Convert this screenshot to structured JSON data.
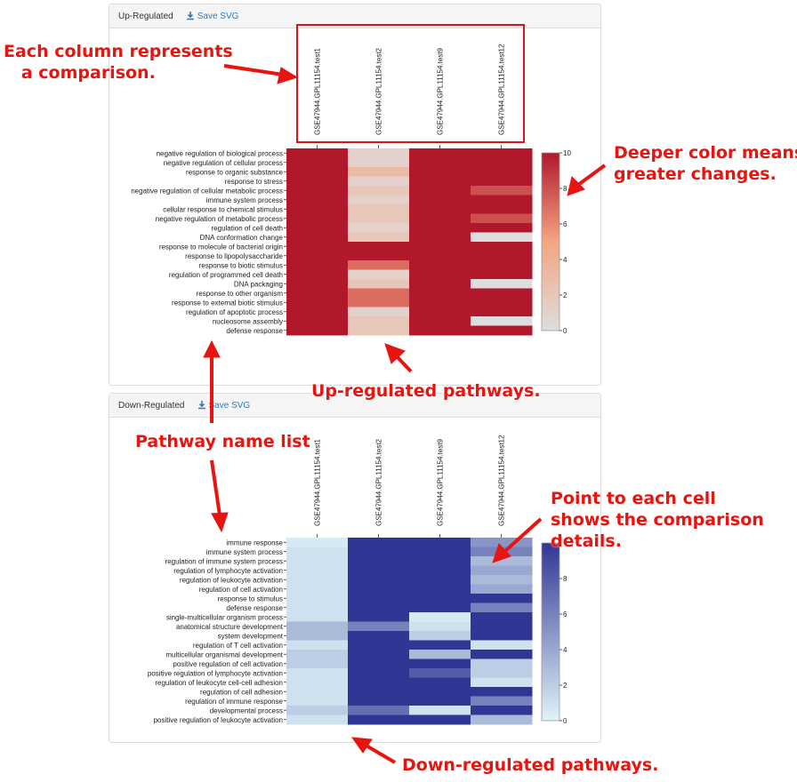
{
  "up_panel": {
    "title": "Up-Regulated",
    "save_label": "Save SVG"
  },
  "down_panel": {
    "title": "Down-Regulated",
    "save_label": "Save SVG"
  },
  "annotations": {
    "columns": "Each column represents\n   a comparison.",
    "color": "Deeper color means\ngreater changes.",
    "up": "Up-regulated pathways.",
    "names": "Pathway name list",
    "cell": "Point to each cell\nshows the comparison\ndetails.",
    "down": "Down-regulated pathways."
  },
  "colors": {
    "up_high": "#b2182b",
    "up_mid": "#f4a582",
    "up_low": "#dddddd",
    "down_high": "#313695",
    "down_low": "#e0f3f8",
    "annotation": "#e8140f",
    "link": "#337ab7"
  },
  "chart_data": [
    {
      "type": "heatmap",
      "name": "Up-Regulated",
      "columns": [
        "GSE47944.GPL11154.test1",
        "GSE47944.GPL11154.test2",
        "GSE47944.GPL11154.test9",
        "GSE47944.GPL11154.test12"
      ],
      "rows": [
        "negative regulation of biological process",
        "negative regulation of cellular process",
        "response to organic substance",
        "response to stress",
        "negative regulation of cellular metabolic process",
        "immune system process",
        "cellular response to chemical stimulus",
        "negative regulation of metabolic process",
        "regulation of cell death",
        "DNA conformation change",
        "response to molecule of bacterial origin",
        "response to lipopolysaccharide",
        "response to biotic stimulus",
        "regulation of programmed cell death",
        "DNA packaging",
        "response to other organism",
        "response to external biotic stimulus",
        "regulation of apoptotic process",
        "nucleosome assembly",
        "defense response"
      ],
      "values": [
        [
          10,
          1,
          10,
          10
        ],
        [
          10,
          1,
          10,
          10
        ],
        [
          10,
          3,
          10,
          10
        ],
        [
          10,
          1,
          10,
          10
        ],
        [
          10,
          2,
          10,
          8
        ],
        [
          10,
          1,
          10,
          10
        ],
        [
          10,
          2,
          10,
          10
        ],
        [
          10,
          2,
          10,
          8
        ],
        [
          10,
          1,
          10,
          10
        ],
        [
          10,
          2,
          10,
          0
        ],
        [
          10,
          10,
          10,
          10
        ],
        [
          10,
          10,
          10,
          10
        ],
        [
          10,
          7,
          10,
          10
        ],
        [
          10,
          1,
          10,
          10
        ],
        [
          10,
          2,
          10,
          0
        ],
        [
          10,
          7,
          10,
          10
        ],
        [
          10,
          7,
          10,
          10
        ],
        [
          10,
          1,
          10,
          10
        ],
        [
          10,
          2,
          10,
          0
        ],
        [
          10,
          2,
          10,
          10
        ]
      ],
      "scale": {
        "min": 0,
        "max": 10,
        "ticks": [
          0,
          2,
          4,
          6,
          8,
          10
        ]
      }
    },
    {
      "type": "heatmap",
      "name": "Down-Regulated",
      "columns": [
        "GSE47944.GPL11154.test1",
        "GSE47944.GPL11154.test2",
        "GSE47944.GPL11154.test9",
        "GSE47944.GPL11154.test12"
      ],
      "rows": [
        "immune response",
        "immune system process",
        "regulation of immune system process",
        "regulation of lymphocyte activation",
        "regulation of leukocyte activation",
        "regulation of cell activation",
        "response to stimulus",
        "defense response",
        "single-multicellular organism process",
        "anatomical structure development",
        "system development",
        "regulation of T cell activation",
        "multicellular organismal development",
        "positive regulation of cell activation",
        "positive regulation of lymphocyte activation",
        "regulation of leukocyte cell-cell adhesion",
        "regulation of cell adhesion",
        "regulation of immune response",
        "developmental process",
        "positive regulation of leukocyte activation"
      ],
      "values": [
        [
          0.5,
          10,
          10,
          5
        ],
        [
          1,
          10,
          10,
          6
        ],
        [
          1,
          10,
          10,
          3
        ],
        [
          1,
          10,
          10,
          4
        ],
        [
          1,
          10,
          10,
          3
        ],
        [
          1,
          10,
          10,
          4
        ],
        [
          1,
          10,
          10,
          10
        ],
        [
          1,
          10,
          10,
          6
        ],
        [
          1,
          10,
          0.5,
          10
        ],
        [
          3,
          6,
          1,
          10
        ],
        [
          3,
          10,
          2,
          10
        ],
        [
          1,
          10,
          10,
          1
        ],
        [
          2,
          10,
          3,
          10
        ],
        [
          2,
          10,
          10,
          2
        ],
        [
          1,
          10,
          8,
          2
        ],
        [
          1,
          10,
          10,
          1
        ],
        [
          1,
          10,
          10,
          10
        ],
        [
          1,
          10,
          10,
          6
        ],
        [
          2,
          7,
          1,
          10
        ],
        [
          1,
          10,
          10,
          3
        ]
      ],
      "scale": {
        "min": 0,
        "max": 10,
        "ticks": [
          0,
          2,
          4,
          6,
          8
        ]
      }
    }
  ]
}
